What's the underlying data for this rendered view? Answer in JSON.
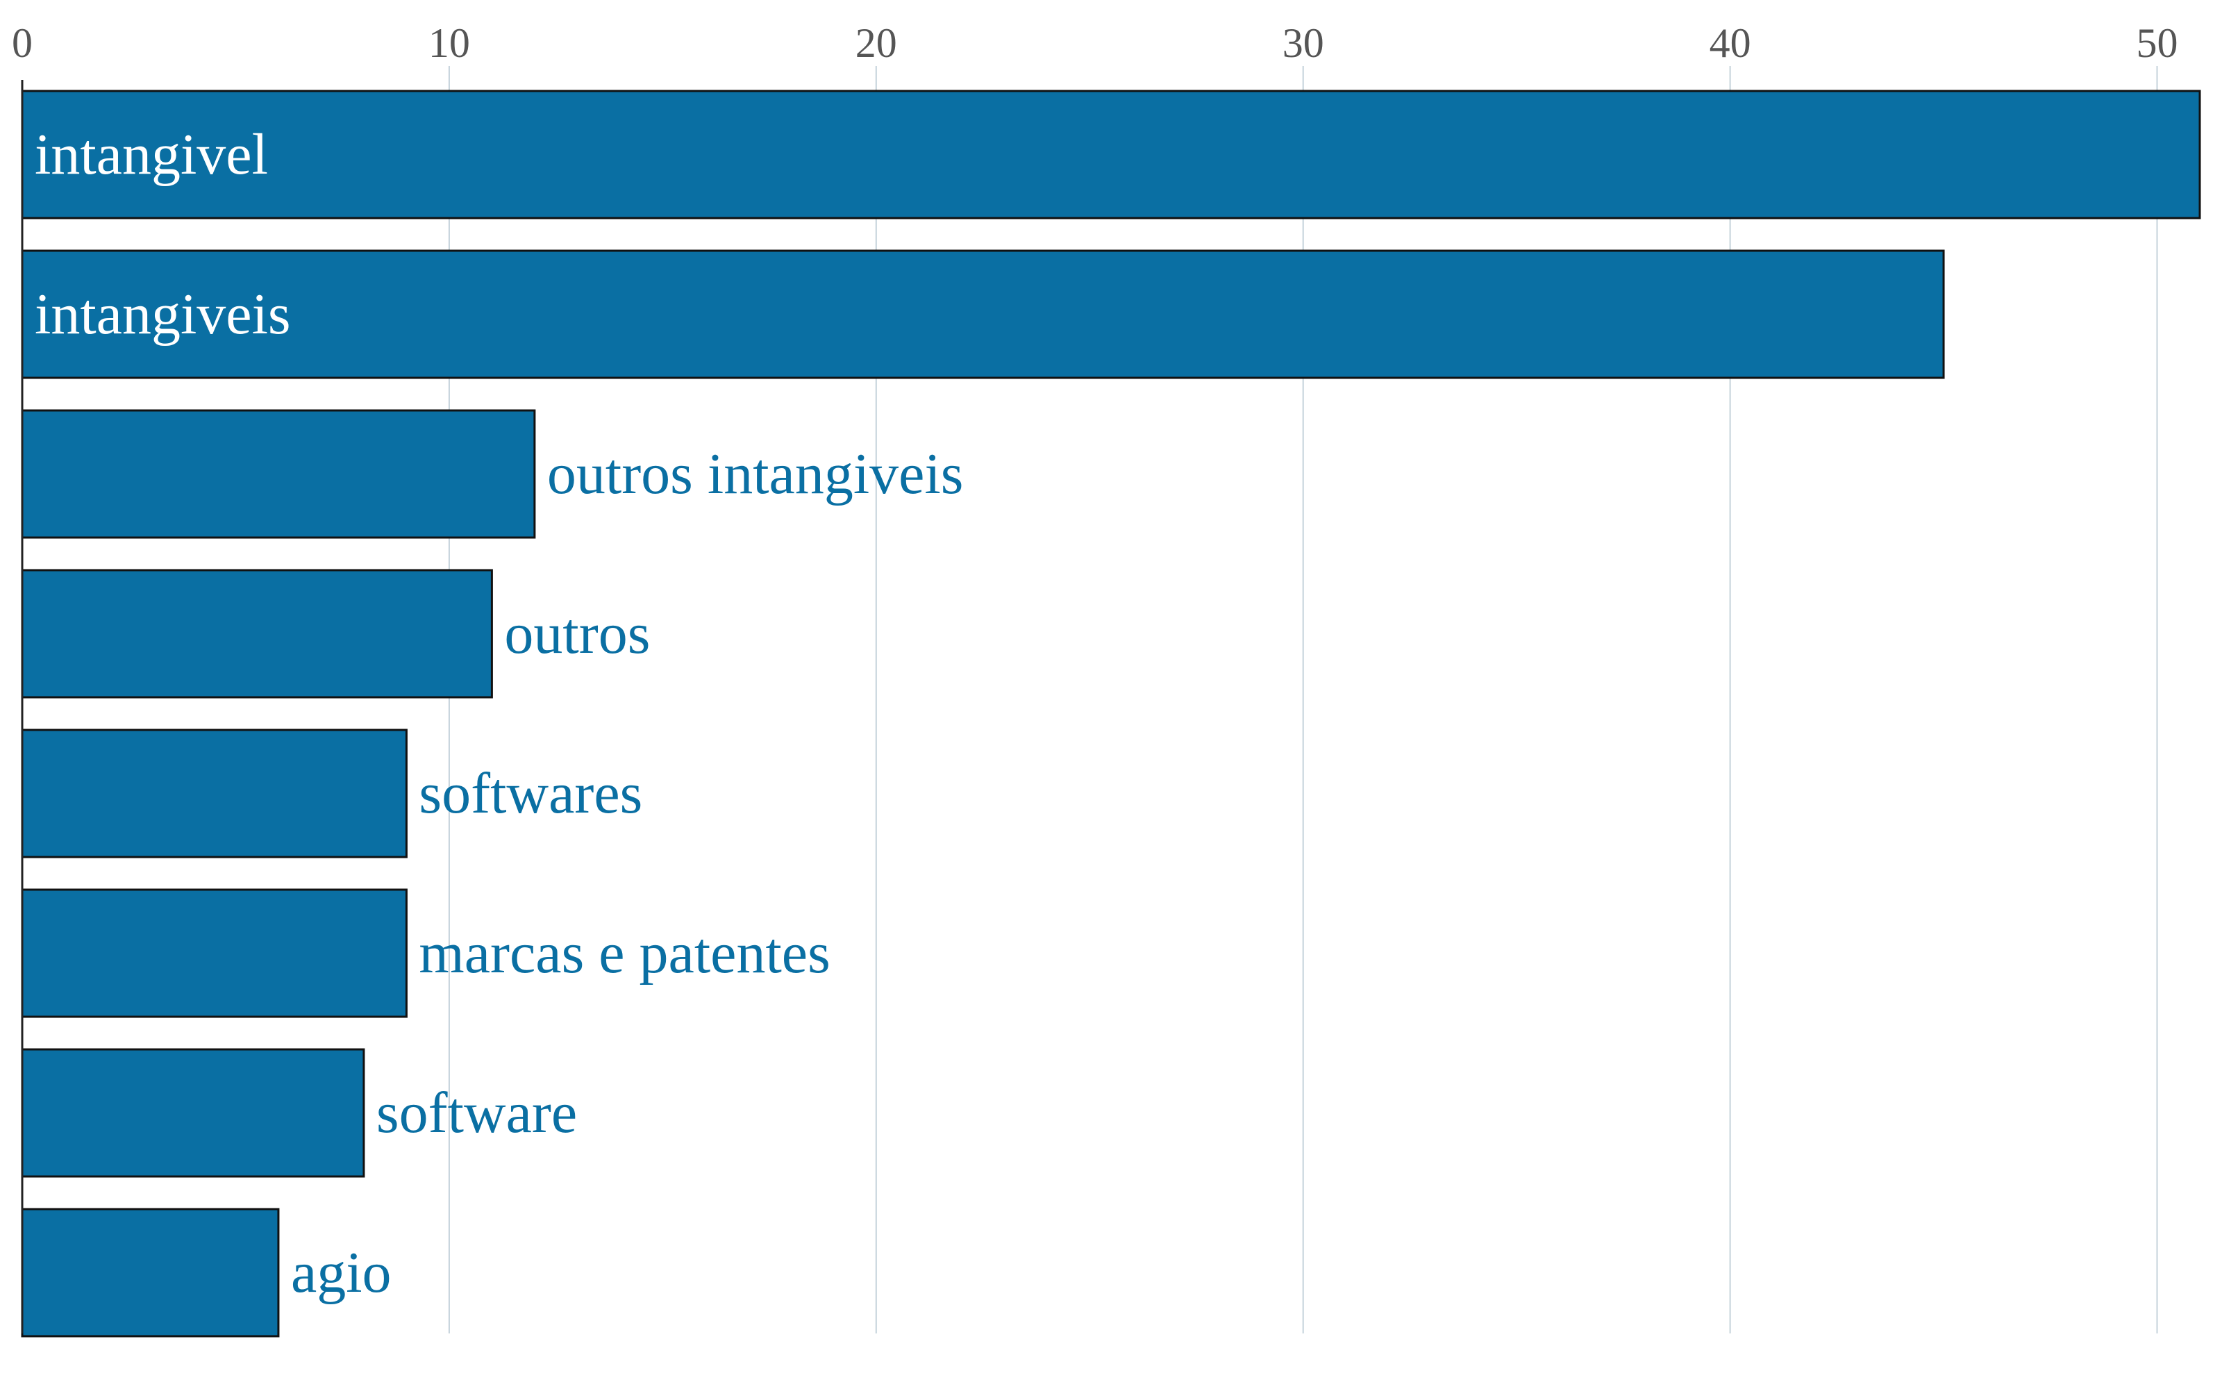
{
  "chart_data": {
    "type": "bar",
    "orientation": "horizontal",
    "categories": [
      "intangivel",
      "intangiveis",
      "outros intangiveis",
      "outros",
      "softwares",
      "marcas e patentes",
      "software",
      "agio"
    ],
    "values": [
      51,
      45,
      12,
      11,
      9,
      9,
      8,
      6
    ],
    "xlim": [
      0,
      51
    ],
    "xticks": [
      0,
      10,
      20,
      30,
      40,
      50
    ],
    "x_axis_position": "top",
    "grid": true,
    "legend": "none",
    "title": "",
    "xlabel": "",
    "ylabel": ""
  },
  "colors": {
    "bar_fill": "#0a6fa3",
    "label_inside": "#ffffff",
    "label_outside": "#0a6fa3"
  }
}
